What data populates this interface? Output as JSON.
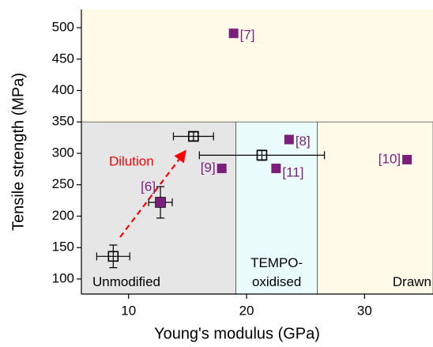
{
  "chart_data": {
    "type": "scatter",
    "x_label": "Young's modulus (GPa)",
    "y_label": "Tensile strength (MPa)",
    "xlim": [
      6,
      35.8
    ],
    "ylim": [
      76,
      529
    ],
    "xticks": [
      10,
      20,
      30
    ],
    "yticks": [
      100,
      150,
      200,
      250,
      300,
      350,
      400,
      450,
      500
    ],
    "background": "#fffbe8",
    "regions": [
      {
        "label": "Unmodified",
        "x": [
          6,
          19.1
        ],
        "y": [
          76,
          350
        ],
        "color": "#e6e6e6"
      },
      {
        "label": "TEMPO-\noxidised",
        "x": [
          19.1,
          26
        ],
        "y": [
          76,
          350
        ],
        "color": "#eafcfc"
      },
      {
        "label": "Drawn",
        "x": [
          26,
          35.8
        ],
        "y": [
          76,
          350
        ],
        "color": "#fffbe8"
      }
    ],
    "series": [
      {
        "color": "#000000",
        "marker": "open-square",
        "x": [
          8.7,
          12.7,
          15.5,
          21.3
        ],
        "values": [
          136,
          222,
          327,
          297
        ],
        "xerr": [
          1.4,
          1.0,
          1.7,
          5.3
        ],
        "yerr": [
          18,
          25,
          7,
          8
        ]
      },
      {
        "color": "#7b1f7b",
        "marker": "filled-square",
        "x": [
          12.7,
          18.9,
          23.6,
          17.9,
          22.5,
          33.6
        ],
        "values": [
          222,
          491,
          322,
          276,
          276,
          290
        ],
        "labels": [
          "[6]",
          "[7]",
          "[8]",
          "[9]",
          "[11]",
          "[10]"
        ],
        "label_positions": [
          "above-left",
          "right",
          "right",
          "left",
          "below-right",
          "left"
        ]
      }
    ],
    "annotation": {
      "text": "Dilution",
      "color": "#ff0000"
    }
  }
}
